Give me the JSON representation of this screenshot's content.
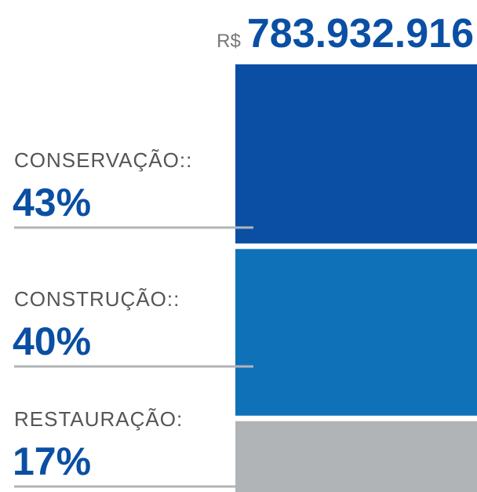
{
  "chart_data": {
    "type": "bar",
    "stacked": true,
    "title_prefix": "R$",
    "title": "783.932.916",
    "categories": [
      "CONSERVAÇÃO::",
      "CONSTRUÇÃO::",
      "RESTAURAÇÃO:"
    ],
    "values": [
      43,
      40,
      17
    ],
    "value_labels": [
      "43%",
      "40%",
      "17%"
    ],
    "colors": [
      "#0a4fa3",
      "#0f72b9",
      "#b1b4b7"
    ]
  }
}
